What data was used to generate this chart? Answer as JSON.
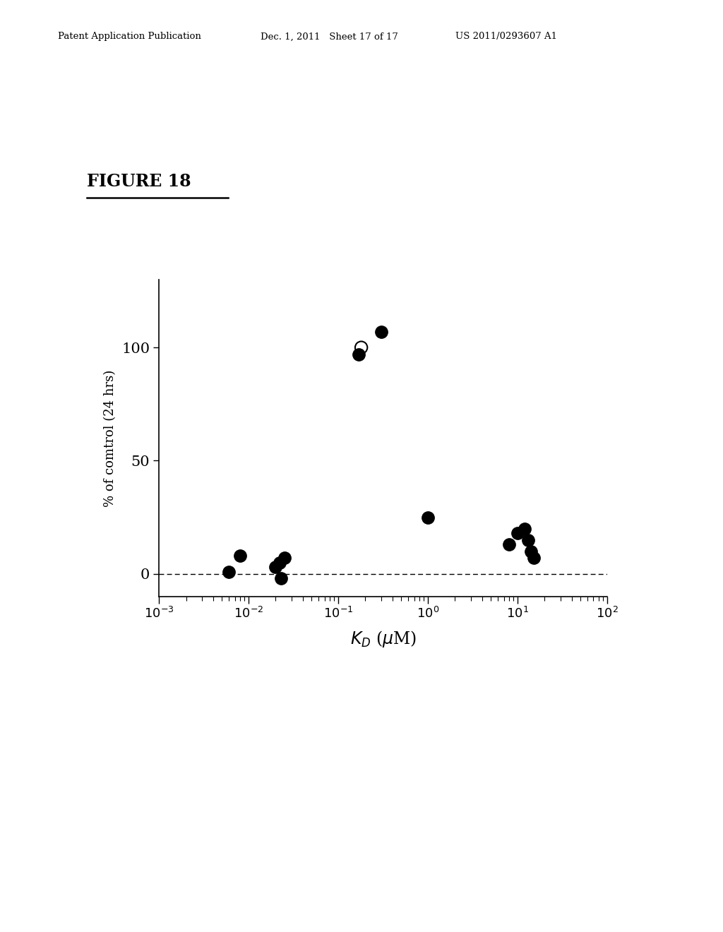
{
  "title": "FIGURE 18",
  "xlabel": "K_D (μM)",
  "ylabel": "% of comtrol (24 hrs)",
  "header_left": "Patent Application Publication",
  "header_mid": "Dec. 1, 2011   Sheet 17 of 17",
  "header_right": "US 2011/0293607 A1",
  "xlim_log": [
    -3,
    2
  ],
  "ylim": [
    -10,
    130
  ],
  "yticks": [
    0,
    50,
    100
  ],
  "dashed_y": 0,
  "filled_points": [
    [
      0.008,
      8
    ],
    [
      0.006,
      1
    ],
    [
      0.02,
      3
    ],
    [
      0.025,
      7
    ],
    [
      0.022,
      5
    ],
    [
      0.023,
      -2
    ],
    [
      0.3,
      107
    ],
    [
      1.0,
      25
    ],
    [
      8.0,
      13
    ],
    [
      10.0,
      18
    ],
    [
      12.0,
      20
    ],
    [
      13.0,
      15
    ],
    [
      14.0,
      10
    ],
    [
      15.0,
      7
    ]
  ],
  "open_points": [
    [
      0.18,
      100
    ]
  ],
  "filled_near_open": [
    [
      0.17,
      97
    ]
  ],
  "background_color": "#ffffff",
  "point_color": "#000000",
  "point_size": 120,
  "marker_style": "o"
}
